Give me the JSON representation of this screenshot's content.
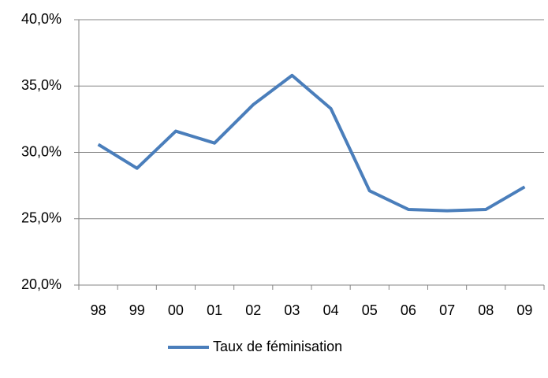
{
  "chart_data": {
    "type": "line",
    "categories": [
      "98",
      "99",
      "00",
      "01",
      "02",
      "03",
      "04",
      "05",
      "06",
      "07",
      "08",
      "09"
    ],
    "series": [
      {
        "name": "Taux de féminisation",
        "color": "#4a7ebb",
        "values": [
          30.6,
          28.8,
          31.6,
          30.7,
          33.6,
          35.8,
          33.3,
          27.1,
          25.7,
          25.6,
          25.7,
          27.4
        ]
      }
    ],
    "ylim": [
      20,
      40
    ],
    "yticks": [
      {
        "value": 20,
        "label": "20,0%"
      },
      {
        "value": 25,
        "label": "25,0%"
      },
      {
        "value": 30,
        "label": "30,0%"
      },
      {
        "value": 35,
        "label": "35,0%"
      },
      {
        "value": 40,
        "label": "40,0%"
      }
    ],
    "grid": true,
    "legend": "bottom"
  }
}
